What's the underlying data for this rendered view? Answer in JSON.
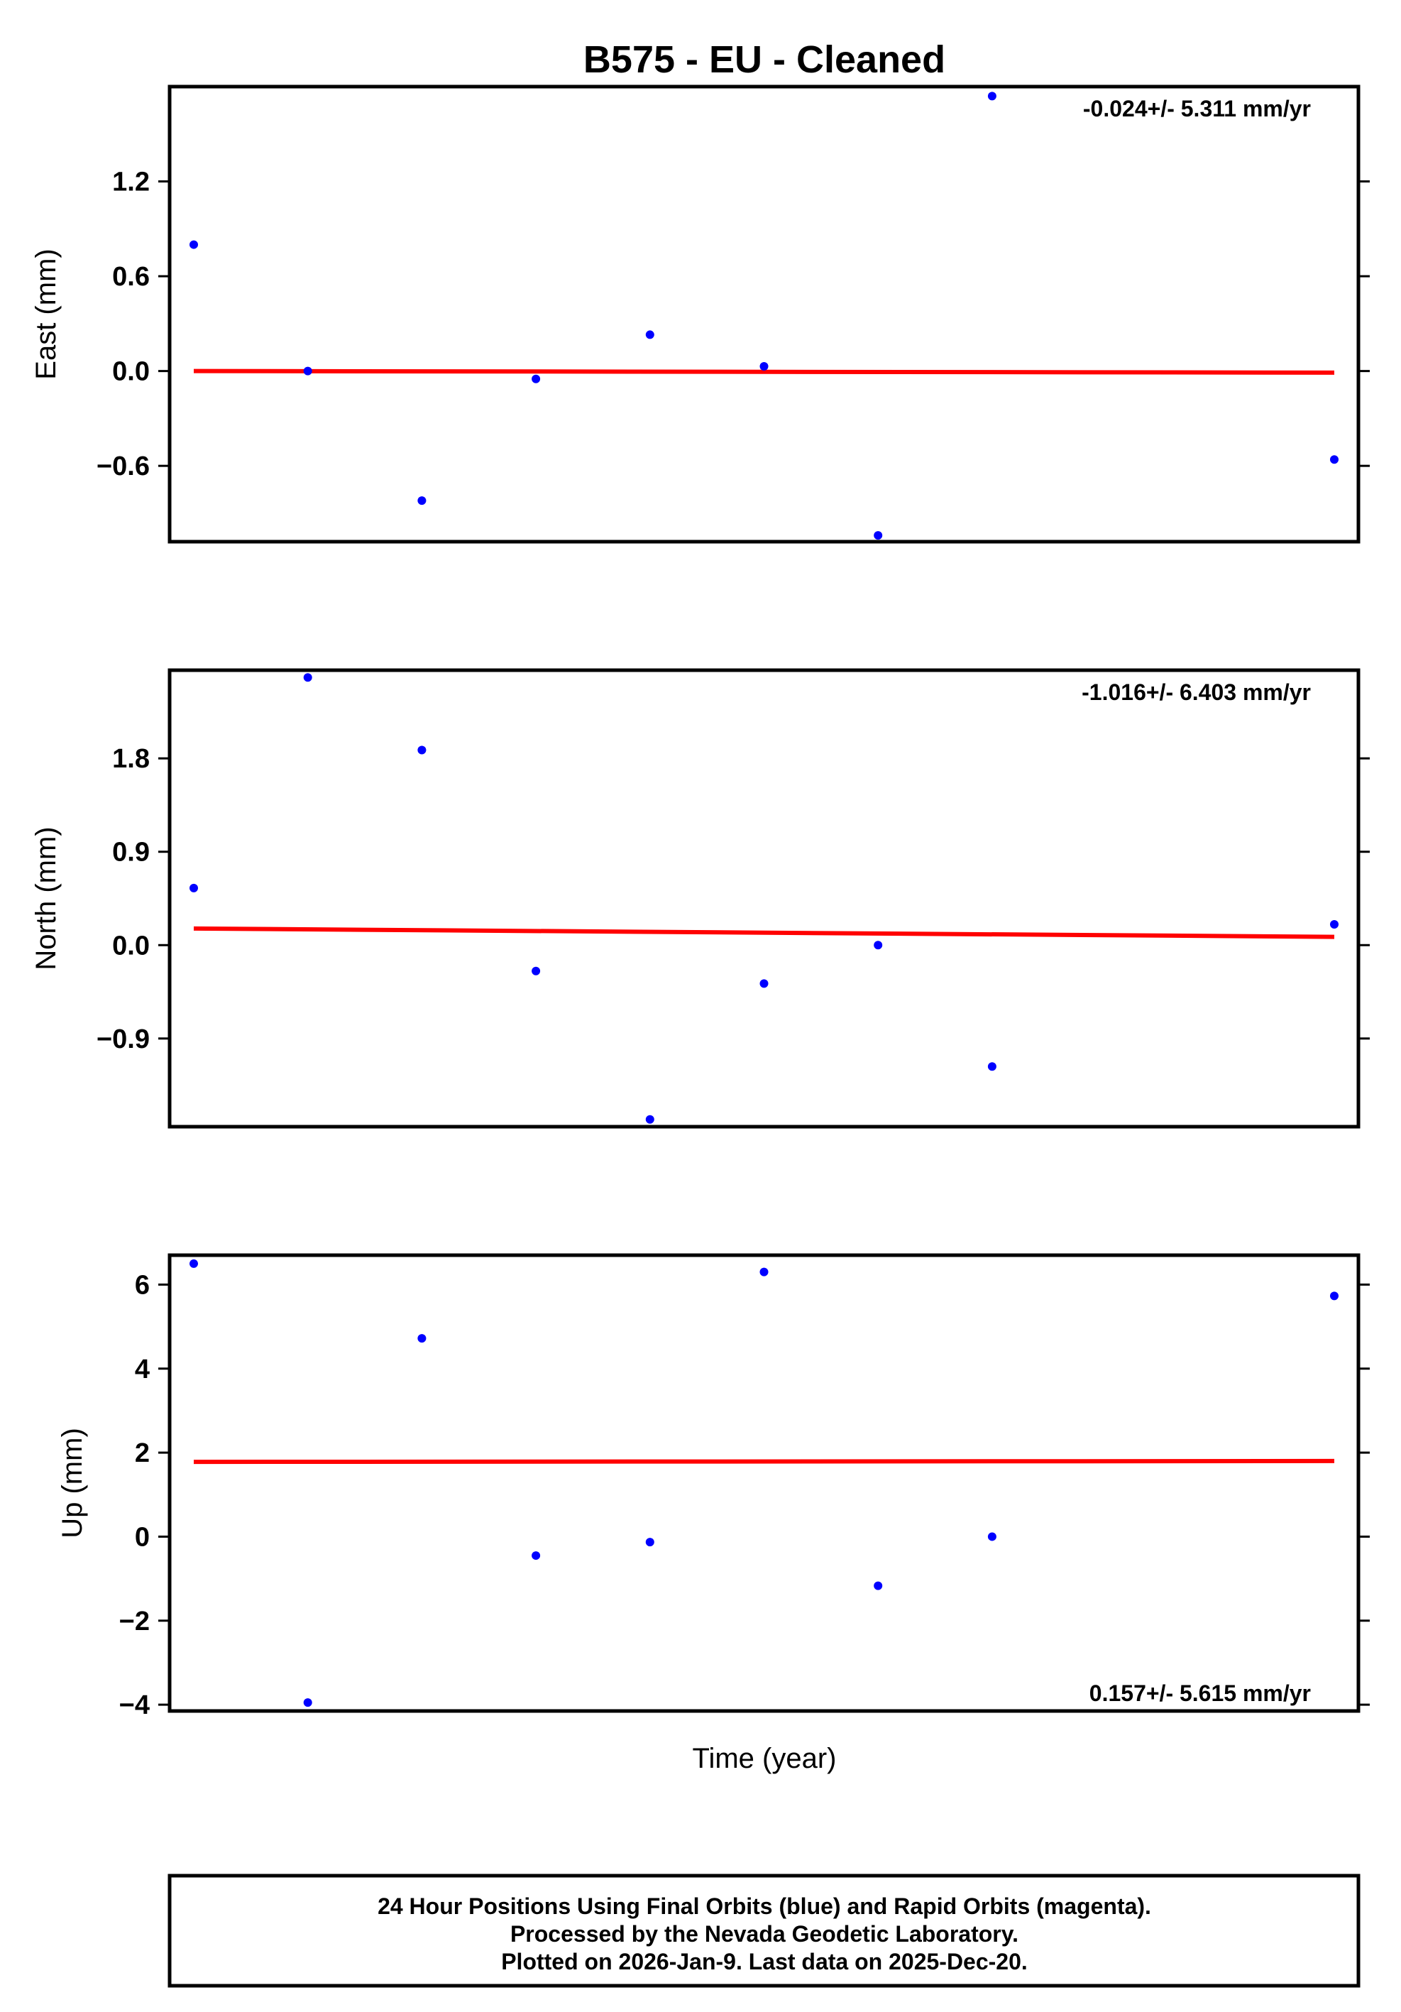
{
  "title": "B575  - EU - Cleaned",
  "xlabel": "Time (year)",
  "footer": [
    "24 Hour Positions Using Final Orbits (blue) and Rapid Orbits (magenta).",
    "Processed by the Nevada Geodetic Laboratory.",
    "Plotted on 2026-Jan-9. Last data on 2025-Dec-20."
  ],
  "colors": {
    "points": "#0000ff",
    "trend": "#ff0000",
    "frame": "#000000"
  },
  "chart_data": [
    {
      "type": "scatter",
      "ylabel": "East (mm)",
      "ylim": [
        -1.08,
        1.8
      ],
      "yticks": [
        -0.6,
        0.0,
        0.6,
        1.2
      ],
      "ytick_labels": [
        "−0.6",
        "0.0",
        "0.6",
        "1.2"
      ],
      "rate_text": "-0.024+/- 5.311 mm/yr",
      "x": [
        1,
        2,
        3,
        4,
        5,
        6,
        7,
        8,
        9,
        10,
        11
      ],
      "y": [
        0.8,
        0.0,
        -0.82,
        -0.05,
        0.23,
        0.03,
        -1.04,
        1.74,
        null,
        null,
        -0.56
      ],
      "trend": [
        [
          1,
          0.0
        ],
        [
          11,
          -0.01
        ]
      ]
    },
    {
      "type": "scatter",
      "ylabel": "North (mm)",
      "ylim": [
        -1.75,
        2.65
      ],
      "yticks": [
        -0.9,
        0.0,
        0.9,
        1.8
      ],
      "ytick_labels": [
        "−0.9",
        "0.0",
        "0.9",
        "1.8"
      ],
      "rate_text": "-1.016+/- 6.403 mm/yr",
      "x": [
        1,
        2,
        3,
        4,
        5,
        6,
        7,
        8,
        9,
        10,
        11
      ],
      "y": [
        0.55,
        2.58,
        1.88,
        -0.25,
        -1.68,
        -0.37,
        0.0,
        -1.17,
        null,
        null,
        0.2
      ],
      "trend": [
        [
          1,
          0.16
        ],
        [
          11,
          0.08
        ]
      ]
    },
    {
      "type": "scatter",
      "ylabel": "Up (mm)",
      "ylim": [
        -4.15,
        6.7
      ],
      "yticks": [
        -4,
        -2,
        0,
        2,
        4,
        6
      ],
      "ytick_labels": [
        "−4",
        "−2",
        "0",
        "2",
        "4",
        "6"
      ],
      "rate_text": "0.157+/- 5.615 mm/yr",
      "x": [
        1,
        2,
        3,
        4,
        5,
        6,
        7,
        8,
        9,
        10,
        11
      ],
      "y": [
        6.5,
        -3.95,
        4.72,
        -0.45,
        -0.13,
        6.3,
        -1.17,
        0.0,
        null,
        null,
        5.73
      ],
      "trend": [
        [
          1,
          1.78
        ],
        [
          11,
          1.8
        ]
      ]
    }
  ]
}
